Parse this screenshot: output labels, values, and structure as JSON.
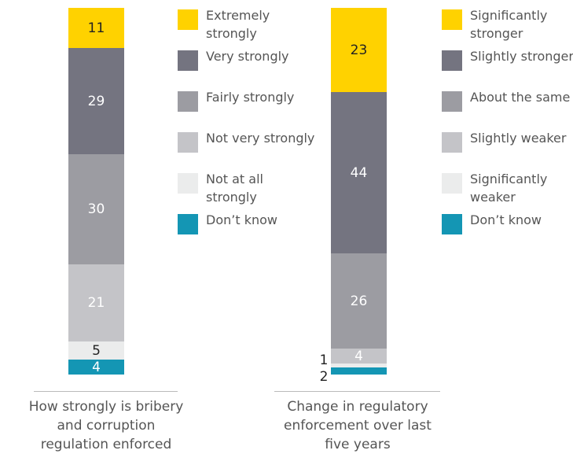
{
  "chart_data": [
    {
      "type": "bar",
      "categories": [
        "How strongly is bribery and corruption regulation enforced"
      ],
      "series": [
        {
          "name": "Extremely strongly",
          "color": "#ffd200",
          "values": [
            11
          ]
        },
        {
          "name": "Very strongly",
          "color": "#747480",
          "values": [
            29
          ]
        },
        {
          "name": "Fairly strongly",
          "color": "#9c9ca2",
          "values": [
            30
          ]
        },
        {
          "name": "Not very strongly",
          "color": "#c4c4c8",
          "values": [
            21
          ]
        },
        {
          "name": "Not at all strongly",
          "color": "#ebecec",
          "values": [
            5
          ]
        },
        {
          "name": "Don’t know",
          "color": "#1496b4",
          "values": [
            4
          ]
        }
      ]
    },
    {
      "type": "bar",
      "categories": [
        "Change in regulatory enforcement over last five years"
      ],
      "series": [
        {
          "name": "Significantly stronger",
          "color": "#ffd200",
          "values": [
            23
          ]
        },
        {
          "name": "Slightly stronger",
          "color": "#747480",
          "values": [
            44
          ]
        },
        {
          "name": "About the same",
          "color": "#9c9ca2",
          "values": [
            26
          ]
        },
        {
          "name": "Slightly weaker",
          "color": "#c4c4c8",
          "values": [
            4
          ]
        },
        {
          "name": "Significantly weaker",
          "color": "#ebecec",
          "values": [
            1
          ]
        },
        {
          "name": "Don’t know",
          "color": "#1496b4",
          "values": [
            2
          ]
        }
      ]
    }
  ]
}
